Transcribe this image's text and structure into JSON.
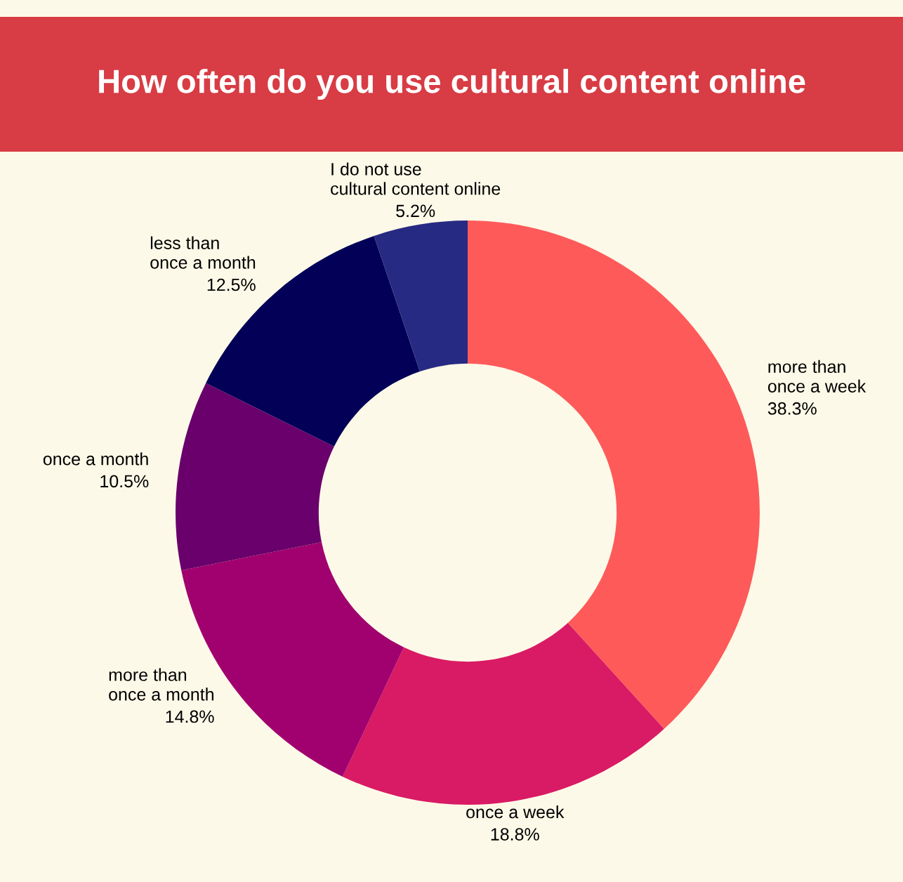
{
  "chart_data": {
    "type": "donut",
    "title": "How often do you use cultural content online",
    "categories": [
      "more than\nonce a week",
      "once a week",
      "more than\nonce a month",
      "once a month",
      "less than\nonce a month",
      "I do not use\ncultural content online"
    ],
    "values": [
      38.3,
      18.8,
      14.8,
      10.5,
      12.5,
      5.2
    ],
    "value_labels": [
      "38.3%",
      "18.8%",
      "14.8%",
      "10.5%",
      "12.5%",
      "5.2%"
    ],
    "colors": [
      "#fe5a5a",
      "#d91a64",
      "#a1006f",
      "#69006b",
      "#020057",
      "#272a82"
    ],
    "legend": false
  }
}
